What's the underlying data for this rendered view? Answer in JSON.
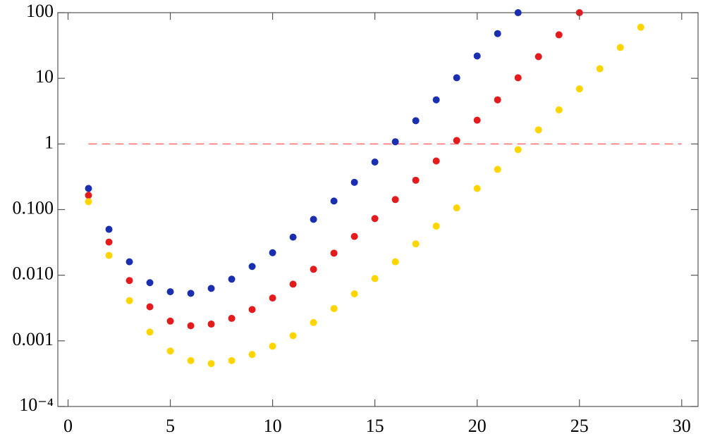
{
  "chart_data": {
    "type": "scatter",
    "log_y": true,
    "xlim": [
      -0.5,
      30.8
    ],
    "xticks": [
      0,
      5,
      10,
      15,
      20,
      25,
      30
    ],
    "ylim": [
      0.0001,
      100
    ],
    "yticks": [
      {
        "value": 0.0001,
        "label": "10⁻⁴"
      },
      {
        "value": 0.001,
        "label": "0.001"
      },
      {
        "value": 0.01,
        "label": "0.010"
      },
      {
        "value": 0.1,
        "label": "0.100"
      },
      1,
      10,
      100
    ],
    "reference_line": {
      "y": 1,
      "xmin": 1,
      "xmax": 30,
      "color": "#ff6b6b",
      "dashed": true
    },
    "series": [
      {
        "color": "#1a2fb0",
        "x": [
          1,
          2,
          3,
          4,
          5,
          6,
          7,
          8,
          9,
          10,
          11,
          12,
          13,
          14,
          15,
          16,
          17,
          18,
          19,
          20,
          21,
          22
        ],
        "values": [
          0.21,
          0.05,
          0.016,
          0.0077,
          0.0056,
          0.0053,
          0.0063,
          0.0087,
          0.0136,
          0.022,
          0.038,
          0.071,
          0.135,
          0.26,
          0.53,
          1.08,
          2.26,
          4.7,
          10.2,
          21.9,
          48,
          100
        ]
      },
      {
        "color": "#e41a1c",
        "x": [
          1,
          2,
          3,
          4,
          5,
          6,
          7,
          8,
          9,
          10,
          11,
          12,
          13,
          14,
          15,
          16,
          17,
          18,
          19,
          20,
          21,
          22,
          23,
          24,
          25
        ],
        "values": [
          0.165,
          0.032,
          0.0083,
          0.0033,
          0.002,
          0.0017,
          0.0018,
          0.0022,
          0.003,
          0.0045,
          0.0073,
          0.0123,
          0.0217,
          0.039,
          0.073,
          0.142,
          0.28,
          0.55,
          1.13,
          2.3,
          4.7,
          10.2,
          21.4,
          46,
          100
        ]
      },
      {
        "color": "#ffd500",
        "x": [
          1,
          2,
          3,
          4,
          5,
          6,
          7,
          8,
          9,
          10,
          11,
          12,
          13,
          14,
          15,
          16,
          17,
          18,
          19,
          20,
          21,
          22,
          23,
          24,
          25,
          26,
          27,
          28
        ],
        "values": [
          0.132,
          0.02,
          0.0041,
          0.00136,
          0.0007,
          0.0005,
          0.00045,
          0.0005,
          0.00062,
          0.00083,
          0.0012,
          0.0019,
          0.0031,
          0.0052,
          0.0089,
          0.016,
          0.03,
          0.056,
          0.106,
          0.21,
          0.41,
          0.82,
          1.64,
          3.3,
          6.9,
          14,
          29.5,
          60
        ]
      }
    ]
  }
}
